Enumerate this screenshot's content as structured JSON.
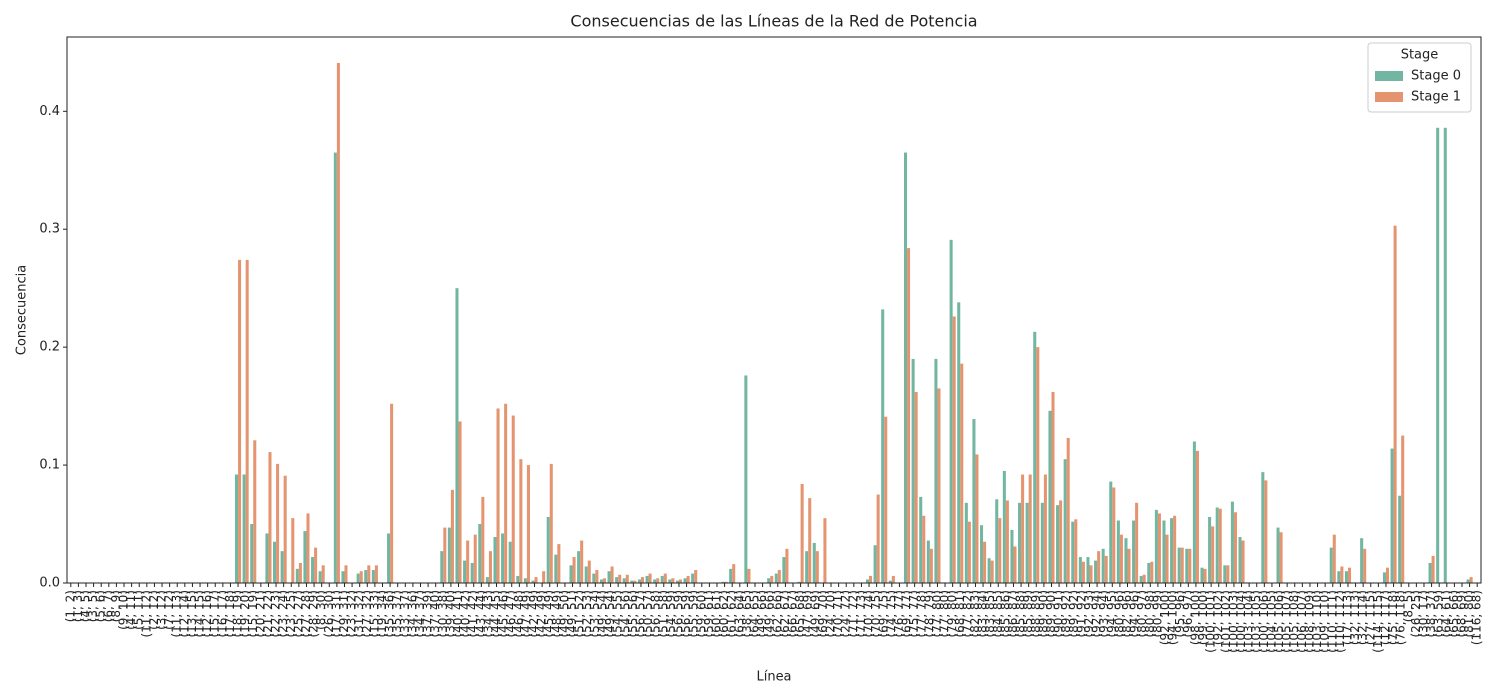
{
  "chart_data": {
    "type": "bar",
    "title": "Consecuencias de las Líneas de la Red de Potencia",
    "xlabel": "Línea",
    "ylabel": "Consecuencia",
    "legend_title": "Stage",
    "legend": "upper right",
    "categories": [
      "(1, 2)",
      "(1, 3)",
      "(4, 5)",
      "(3, 5)",
      "(5, 6)",
      "(6, 7)",
      "(8, 9)",
      "(9, 10)",
      "(4, 11)",
      "(5, 11)",
      "(11, 12)",
      "(2, 12)",
      "(3, 12)",
      "(7, 12)",
      "(11, 13)",
      "(12, 14)",
      "(13, 15)",
      "(14, 15)",
      "(12, 16)",
      "(15, 17)",
      "(16, 17)",
      "(17, 18)",
      "(18, 19)",
      "(19, 20)",
      "(15, 19)",
      "(20, 21)",
      "(21, 22)",
      "(22, 23)",
      "(23, 24)",
      "(23, 25)",
      "(25, 27)",
      "(27, 28)",
      "(28, 29)",
      "(8, 30)",
      "(26, 30)",
      "(17, 31)",
      "(29, 31)",
      "(23, 32)",
      "(31, 32)",
      "(27, 32)",
      "(15, 33)",
      "(19, 34)",
      "(35, 36)",
      "(35, 37)",
      "(33, 37)",
      "(34, 36)",
      "(34, 37)",
      "(37, 39)",
      "(37, 40)",
      "(30, 38)",
      "(39, 40)",
      "(40, 41)",
      "(40, 42)",
      "(41, 42)",
      "(43, 44)",
      "(34, 43)",
      "(44, 45)",
      "(45, 46)",
      "(46, 47)",
      "(46, 48)",
      "(47, 49)",
      "(42, 49)",
      "(42, 49)",
      "(45, 49)",
      "(48, 49)",
      "(49, 50)",
      "(49, 51)",
      "(51, 52)",
      "(52, 53)",
      "(53, 54)",
      "(49, 54)",
      "(49, 54)",
      "(54, 55)",
      "(54, 56)",
      "(55, 56)",
      "(56, 57)",
      "(50, 57)",
      "(56, 58)",
      "(51, 58)",
      "(54, 59)",
      "(56, 59)",
      "(56, 59)",
      "(55, 59)",
      "(59, 60)",
      "(59, 61)",
      "(60, 61)",
      "(60, 62)",
      "(61, 62)",
      "(63, 64)",
      "(38, 65)",
      "(64, 65)",
      "(49, 66)",
      "(49, 66)",
      "(62, 66)",
      "(62, 67)",
      "(66, 67)",
      "(65, 68)",
      "(47, 69)",
      "(49, 69)",
      "(69, 70)",
      "(24, 70)",
      "(70, 71)",
      "(24, 72)",
      "(71, 72)",
      "(71, 73)",
      "(70, 74)",
      "(70, 75)",
      "(69, 75)",
      "(74, 75)",
      "(76, 77)",
      "(69, 77)",
      "(75, 77)",
      "(77, 78)",
      "(78, 79)",
      "(77, 80)",
      "(77, 80)",
      "(79, 80)",
      "(68, 81)",
      "(77, 82)",
      "(82, 83)",
      "(83, 84)",
      "(83, 85)",
      "(84, 85)",
      "(85, 86)",
      "(86, 87)",
      "(85, 88)",
      "(85, 89)",
      "(88, 89)",
      "(89, 90)",
      "(89, 90)",
      "(90, 91)",
      "(89, 92)",
      "(89, 92)",
      "(91, 92)",
      "(92, 93)",
      "(92, 94)",
      "(93, 94)",
      "(94, 95)",
      "(80, 96)",
      "(82, 96)",
      "(94, 96)",
      "(80, 97)",
      "(80, 98)",
      "(80, 99)",
      "(92, 100)",
      "(94, 100)",
      "(95, 96)",
      "(96, 97)",
      "(98, 100)",
      "(99, 100)",
      "(100, 101)",
      "(92, 102)",
      "(101, 102)",
      "(100, 103)",
      "(100, 104)",
      "(103, 104)",
      "(103, 105)",
      "(100, 106)",
      "(104, 105)",
      "(105, 106)",
      "(105, 107)",
      "(105, 108)",
      "(106, 107)",
      "(108, 109)",
      "(103, 110)",
      "(109, 110)",
      "(110, 111)",
      "(110, 112)",
      "(17, 113)",
      "(32, 113)",
      "(32, 114)",
      "(27, 115)",
      "(114, 115)",
      "(12, 117)",
      "(75, 118)",
      "(76, 118)",
      "(8, 5)",
      "(26, 25)",
      "(30, 17)",
      "(38, 37)",
      "(63, 59)",
      "(64, 61)",
      "(65, 66)",
      "(68, 69)",
      "(81, 80)",
      "(116, 68)"
    ],
    "series": [
      {
        "name": "Stage 0",
        "color": "#72b6a1",
        "values": [
          0,
          0,
          0,
          0,
          0,
          0,
          0,
          0,
          0,
          0,
          0,
          0,
          0,
          0,
          0,
          0,
          0,
          0,
          0,
          0,
          0,
          0,
          0.092,
          0.092,
          0.05,
          0,
          0.042,
          0.035,
          0.027,
          0,
          0.012,
          0.044,
          0.022,
          0.01,
          0,
          0.365,
          0.01,
          0,
          0.008,
          0.011,
          0.011,
          0,
          0.042,
          0,
          0,
          0,
          0,
          0,
          0,
          0.027,
          0.047,
          0.25,
          0.019,
          0.017,
          0.05,
          0.005,
          0.039,
          0.042,
          0.035,
          0.006,
          0.004,
          0.002,
          0,
          0.056,
          0.024,
          0,
          0.015,
          0.027,
          0.014,
          0.008,
          0.003,
          0.01,
          0.005,
          0.004,
          0.002,
          0.003,
          0.006,
          0.003,
          0.006,
          0.003,
          0.002,
          0.004,
          0.008,
          0,
          0,
          0,
          0.001,
          0.012,
          0,
          0.176,
          0,
          0,
          0.004,
          0.008,
          0.022,
          0,
          0.001,
          0.027,
          0.034,
          0,
          0,
          0,
          0,
          0,
          0,
          0.003,
          0.032,
          0.232,
          0.002,
          0,
          0.365,
          0.19,
          0.073,
          0.036,
          0.19,
          0,
          0.291,
          0.238,
          0.068,
          0.139,
          0.049,
          0.021,
          0.071,
          0.095,
          0.045,
          0.068,
          0.068,
          0.213,
          0.068,
          0.146,
          0.066,
          0.105,
          0.052,
          0.022,
          0.022,
          0.019,
          0.029,
          0.086,
          0.053,
          0.038,
          0.053,
          0.006,
          0.017,
          0.062,
          0.053,
          0.055,
          0.03,
          0.029,
          0.12,
          0.013,
          0.056,
          0.064,
          0.015,
          0.069,
          0.039,
          0,
          0,
          0.094,
          0,
          0.047,
          0,
          0,
          0,
          0,
          0,
          0,
          0.03,
          0.01,
          0.01,
          0,
          0.038,
          0,
          0,
          0.009,
          0.114,
          0.074,
          0,
          0,
          0,
          0.017,
          0.386,
          0.386,
          0,
          0,
          0.003,
          0
        ]
      },
      {
        "name": "Stage 1",
        "color": "#e59470",
        "values": [
          0,
          0,
          0,
          0,
          0,
          0,
          0,
          0,
          0,
          0,
          0,
          0,
          0,
          0,
          0,
          0,
          0,
          0,
          0,
          0,
          0,
          0,
          0.274,
          0.274,
          0.121,
          0,
          0.111,
          0.101,
          0.091,
          0.055,
          0.017,
          0.059,
          0.03,
          0.015,
          0,
          0.441,
          0.015,
          0,
          0.01,
          0.015,
          0.015,
          0,
          0.152,
          0,
          0,
          0,
          0,
          0,
          0,
          0.047,
          0.079,
          0.137,
          0.036,
          0.041,
          0.073,
          0.027,
          0.148,
          0.152,
          0.142,
          0.105,
          0.1,
          0.005,
          0.01,
          0.101,
          0.033,
          0,
          0.022,
          0.036,
          0.019,
          0.011,
          0.004,
          0.014,
          0.007,
          0.007,
          0.002,
          0.005,
          0.008,
          0.004,
          0.008,
          0.004,
          0.003,
          0.006,
          0.011,
          0,
          0,
          0,
          0.001,
          0.016,
          0,
          0.012,
          0,
          0,
          0.006,
          0.011,
          0.029,
          0,
          0.084,
          0.072,
          0.027,
          0.055,
          0,
          0,
          0,
          0,
          0,
          0.006,
          0.075,
          0.141,
          0.006,
          0,
          0.284,
          0.162,
          0.057,
          0.029,
          0.165,
          0,
          0.226,
          0.186,
          0.052,
          0.109,
          0.035,
          0.019,
          0.055,
          0.07,
          0.031,
          0.092,
          0.092,
          0.2,
          0.092,
          0.162,
          0.07,
          0.123,
          0.054,
          0.018,
          0.015,
          0.027,
          0.023,
          0.081,
          0.041,
          0.029,
          0.068,
          0.007,
          0.018,
          0.059,
          0.041,
          0.057,
          0.03,
          0.029,
          0.112,
          0.012,
          0.048,
          0.063,
          0.015,
          0.06,
          0.036,
          0,
          0,
          0.087,
          0,
          0.043,
          0,
          0,
          0,
          0,
          0,
          0,
          0.041,
          0.014,
          0.013,
          0,
          0.029,
          0,
          0,
          0.013,
          0.303,
          0.125,
          0,
          0,
          0,
          0.023,
          0,
          0,
          0,
          0,
          0.005,
          0
        ]
      }
    ],
    "ylim": [
      0,
      0.463
    ],
    "yticks": [
      {
        "value": 0,
        "label": "0.0"
      },
      0.1,
      0.2,
      0.3,
      0.4
    ]
  }
}
